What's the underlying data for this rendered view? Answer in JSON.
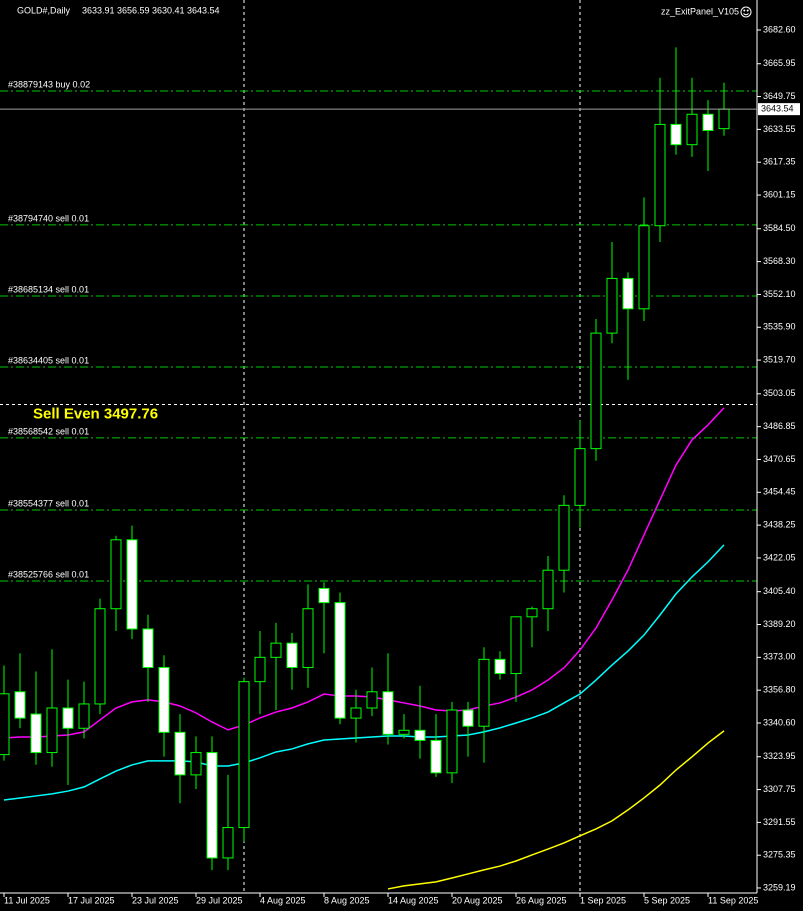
{
  "header": {
    "symbol": "GOLD#,Daily",
    "open": 3633.91,
    "high": 3656.59,
    "low": 3630.41,
    "close": 3643.54,
    "panel": "zz_ExitPanel_V105"
  },
  "chart_data": {
    "type": "candlestick",
    "x": [
      "11 Jul 2025",
      null,
      null,
      null,
      "17 Jul 2025",
      null,
      null,
      null,
      "23 Jul 2025",
      null,
      null,
      null,
      "29 Jul 2025",
      null,
      null,
      null,
      "4 Aug 2025",
      null,
      null,
      null,
      "8 Aug 2025",
      null,
      null,
      null,
      "14 Aug 2025",
      null,
      null,
      null,
      "20 Aug 2025",
      null,
      null,
      null,
      "26 Aug 2025",
      null,
      null,
      null,
      "1 Sep 2025",
      null,
      null,
      null,
      "5 Sep 2025",
      null,
      null,
      null,
      "11 Sep 2025",
      null
    ],
    "open": [
      3325,
      3356,
      3345,
      3326,
      3348,
      3338,
      3350,
      3397,
      3431,
      3387,
      3368,
      3336,
      3315,
      3326,
      3274,
      3289,
      3361,
      3373,
      3380,
      3368,
      3407,
      3400,
      3343,
      3348,
      3356,
      3335,
      3337,
      3332,
      3316,
      3347,
      3339,
      3372,
      3365,
      3393,
      3397,
      3416,
      3448,
      3476,
      3533,
      3560,
      3545,
      3586,
      3636,
      3626,
      3641,
      3633.91
    ],
    "high": [
      3369,
      3375,
      3366,
      3377,
      3362,
      3361,
      3402,
      3433,
      3438,
      3394,
      3374,
      3345,
      3334,
      3334,
      3315,
      3363,
      3386,
      3390,
      3385,
      3409,
      3410,
      3405,
      3357,
      3368,
      3375,
      3345,
      3359,
      3345,
      3351,
      3351,
      3378,
      3376,
      3393,
      3398,
      3423,
      3453,
      3490,
      3540,
      3578,
      3563,
      3600,
      3659,
      3674,
      3659,
      3648,
      3656.59
    ],
    "low": [
      3322,
      3338,
      3320,
      3319,
      3310,
      3333,
      3345,
      3386,
      3382,
      3351,
      3324,
      3301,
      3308,
      3268,
      3268,
      3282,
      3345,
      3347,
      3357,
      3358,
      3375,
      3340,
      3331,
      3344,
      3330,
      3333,
      3323,
      3314,
      3311,
      3324,
      3321,
      3362,
      3351,
      3378,
      3386,
      3405,
      3437,
      3470,
      3528,
      3510,
      3539,
      3578,
      3621,
      3620,
      3613,
      3630.41
    ],
    "close": [
      3355,
      3343,
      3326,
      3348,
      3338,
      3350,
      3397,
      3431,
      3387,
      3368,
      3336,
      3315,
      3326,
      3274,
      3289,
      3361,
      3373,
      3380,
      3368,
      3397,
      3400,
      3343,
      3348,
      3356,
      3335,
      3337,
      3332,
      3316,
      3347,
      3339,
      3372,
      3365,
      3393,
      3397,
      3416,
      3448,
      3476,
      3533,
      3560,
      3545,
      3586,
      3636,
      3626,
      3641,
      3633,
      3643.54
    ],
    "overlays": [
      {
        "color": "#ff00ff",
        "values": [
          3333.2,
          3333.7,
          3333.7,
          3334.2,
          3334.7,
          3336.2,
          3342.1,
          3348,
          3351,
          3352,
          3351,
          3349,
          3345.6,
          3341.1,
          3337.2,
          3339.6,
          3343.1,
          3346,
          3348,
          3351,
          3354.9,
          3353.9,
          3353.9,
          3353.4,
          3352,
          3350.5,
          3349,
          3347,
          3346.5,
          3347,
          3349,
          3350.5,
          3353.4,
          3356.9,
          3361.8,
          3367.8,
          3376.6,
          3387.5,
          3401.3,
          3416.1,
          3433.4,
          3450.7,
          3467.9,
          3480.3,
          3487.7,
          3496.1
        ]
      },
      {
        "color": "#00ffff",
        "values": [
          3302.6,
          3303.6,
          3304.6,
          3305.6,
          3307,
          3309,
          3313,
          3316.9,
          3319.9,
          3321.9,
          3321.9,
          3321.9,
          3321.4,
          3319.4,
          3319.4,
          3320.9,
          3323.4,
          3326.3,
          3327.8,
          3330.3,
          3332.2,
          3332.7,
          3333.2,
          3333.7,
          3334.2,
          3334.2,
          3333.7,
          3333.7,
          3334.2,
          3334.7,
          3336.2,
          3338.2,
          3340.6,
          3343.1,
          3346,
          3350.5,
          3354.9,
          3361.8,
          3369.2,
          3376.1,
          3384,
          3393.9,
          3404.3,
          3412.7,
          3420.1,
          3428.5
        ]
      },
      {
        "color": "#ffff00",
        "values": [
          null,
          null,
          null,
          null,
          null,
          null,
          null,
          null,
          null,
          null,
          null,
          null,
          null,
          null,
          null,
          null,
          null,
          null,
          null,
          null,
          null,
          null,
          null,
          null,
          3258.7,
          3260.2,
          3261.2,
          3262.2,
          3264.1,
          3266.1,
          3268.1,
          3270,
          3272.5,
          3275.5,
          3278.4,
          3281.4,
          3284.9,
          3288.3,
          3292.3,
          3297.7,
          3303.6,
          3310,
          3317.4,
          3323.9,
          3330.7,
          3336.7
        ]
      }
    ],
    "ylim": [
      3256.7,
      3697.4
    ],
    "yticks": [
      {
        "value": 3682.6,
        "label": "3682.60"
      },
      3665.95,
      3649.75,
      3633.55,
      3617.35,
      3601.15,
      {
        "value": 3584.5,
        "label": "3584.50"
      },
      {
        "value": 3568.3,
        "label": "3568.30"
      },
      {
        "value": 3552.1,
        "label": "3552.10"
      },
      {
        "value": 3535.9,
        "label": "3535.90"
      },
      {
        "value": 3519.7,
        "label": "3519.70"
      },
      3503.05,
      3486.85,
      3470.65,
      3454.45,
      3438.25,
      3422.05,
      {
        "value": 3405.4,
        "label": "3405.40"
      },
      {
        "value": 3389.2,
        "label": "3389.20"
      },
      {
        "value": 3373,
        "label": "3373.00"
      },
      {
        "value": 3356.8,
        "label": "3356.80"
      },
      {
        "value": 3340.6,
        "label": "3340.60"
      },
      3323.95,
      3307.75,
      3291.55,
      3275.35,
      3259.19
    ],
    "up_color": "#000000",
    "down_color": "#ffffff",
    "outline_color": "#00ff00",
    "orders": [
      {
        "label": "#38879143 buy 0.02",
        "price": 3652.5
      },
      {
        "label": "#38794740 sell 0.01",
        "price": 3586.4
      },
      {
        "label": "#38685134 sell 0.01",
        "price": 3551.3
      },
      {
        "label": "#38634405 sell 0.01",
        "price": 3516.3
      },
      {
        "label": "#38568542 sell 0.01",
        "price": 3481.3
      },
      {
        "label": "#38554377 sell 0.01",
        "price": 3445.7
      },
      {
        "label": "#38525766 sell 0.01",
        "price": 3410.7
      }
    ],
    "order_color": "#00c800",
    "sell_even": {
      "label": "Sell Even 3497.76",
      "price": 3497.76,
      "color": "#ffff00"
    }
  }
}
